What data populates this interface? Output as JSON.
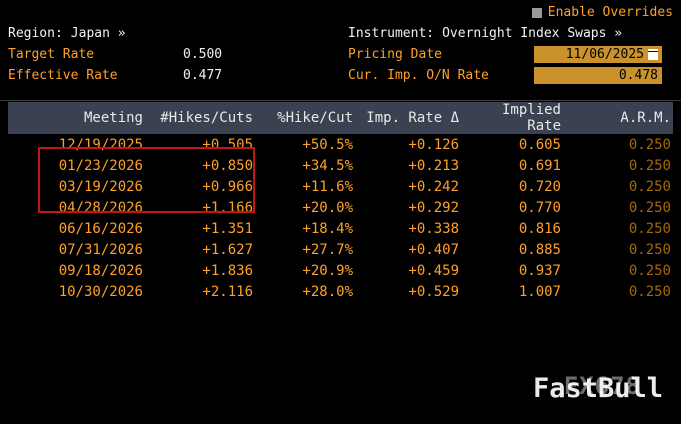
{
  "topbar": {
    "enable_overrides": "Enable Overrides"
  },
  "header": {
    "region_label": "Region:",
    "region_value": "Japan »",
    "instrument_label": "Instrument:",
    "instrument_value": "Overnight Index Swaps »",
    "target_rate": {
      "label": "Target Rate",
      "value": "0.500"
    },
    "effective_rate": {
      "label": "Effective Rate",
      "value": "0.477"
    },
    "pricing_date": {
      "label": "Pricing Date",
      "value": "11/06/2025"
    },
    "cur_imp_on_rate": {
      "label": "Cur. Imp. O/N Rate",
      "value": "0.478"
    }
  },
  "table": {
    "columns": [
      "Meeting",
      "#Hikes/Cuts",
      "%Hike/Cut",
      "Imp. Rate Δ",
      "Implied Rate",
      "A.R.M."
    ],
    "column_keys": [
      "meeting",
      "hikes-cuts",
      "pct-hike-cut",
      "imp-rate-delta",
      "implied-rate",
      "arm"
    ],
    "rows": [
      [
        "12/19/2025",
        "+0.505",
        "+50.5%",
        "+0.126",
        "0.605",
        "0.250"
      ],
      [
        "01/23/2026",
        "+0.850",
        "+34.5%",
        "+0.213",
        "0.691",
        "0.250"
      ],
      [
        "03/19/2026",
        "+0.966",
        "+11.6%",
        "+0.242",
        "0.720",
        "0.250"
      ],
      [
        "04/28/2026",
        "+1.166",
        "+20.0%",
        "+0.292",
        "0.770",
        "0.250"
      ],
      [
        "06/16/2026",
        "+1.351",
        "+18.4%",
        "+0.338",
        "0.816",
        "0.250"
      ],
      [
        "07/31/2026",
        "+1.627",
        "+27.7%",
        "+0.407",
        "0.885",
        "0.250"
      ],
      [
        "09/18/2026",
        "+1.836",
        "+20.9%",
        "+0.459",
        "0.937",
        "0.250"
      ],
      [
        "10/30/2026",
        "+2.116",
        "+28.0%",
        "+0.529",
        "1.007",
        "0.250"
      ]
    ],
    "highlighted_rows": [
      "01/23/2026",
      "03/19/2026",
      "04/28/2026"
    ]
  },
  "annotation": {
    "highlight_color": "#c41414"
  },
  "watermark": {
    "back": "FX678",
    "front": "FastBull"
  },
  "colors": {
    "amber": "#ffa028",
    "dim_amber": "#a4680c",
    "field_bg": "#c9922b",
    "table_header_bg": "#3a4150",
    "background": "#000000"
  }
}
